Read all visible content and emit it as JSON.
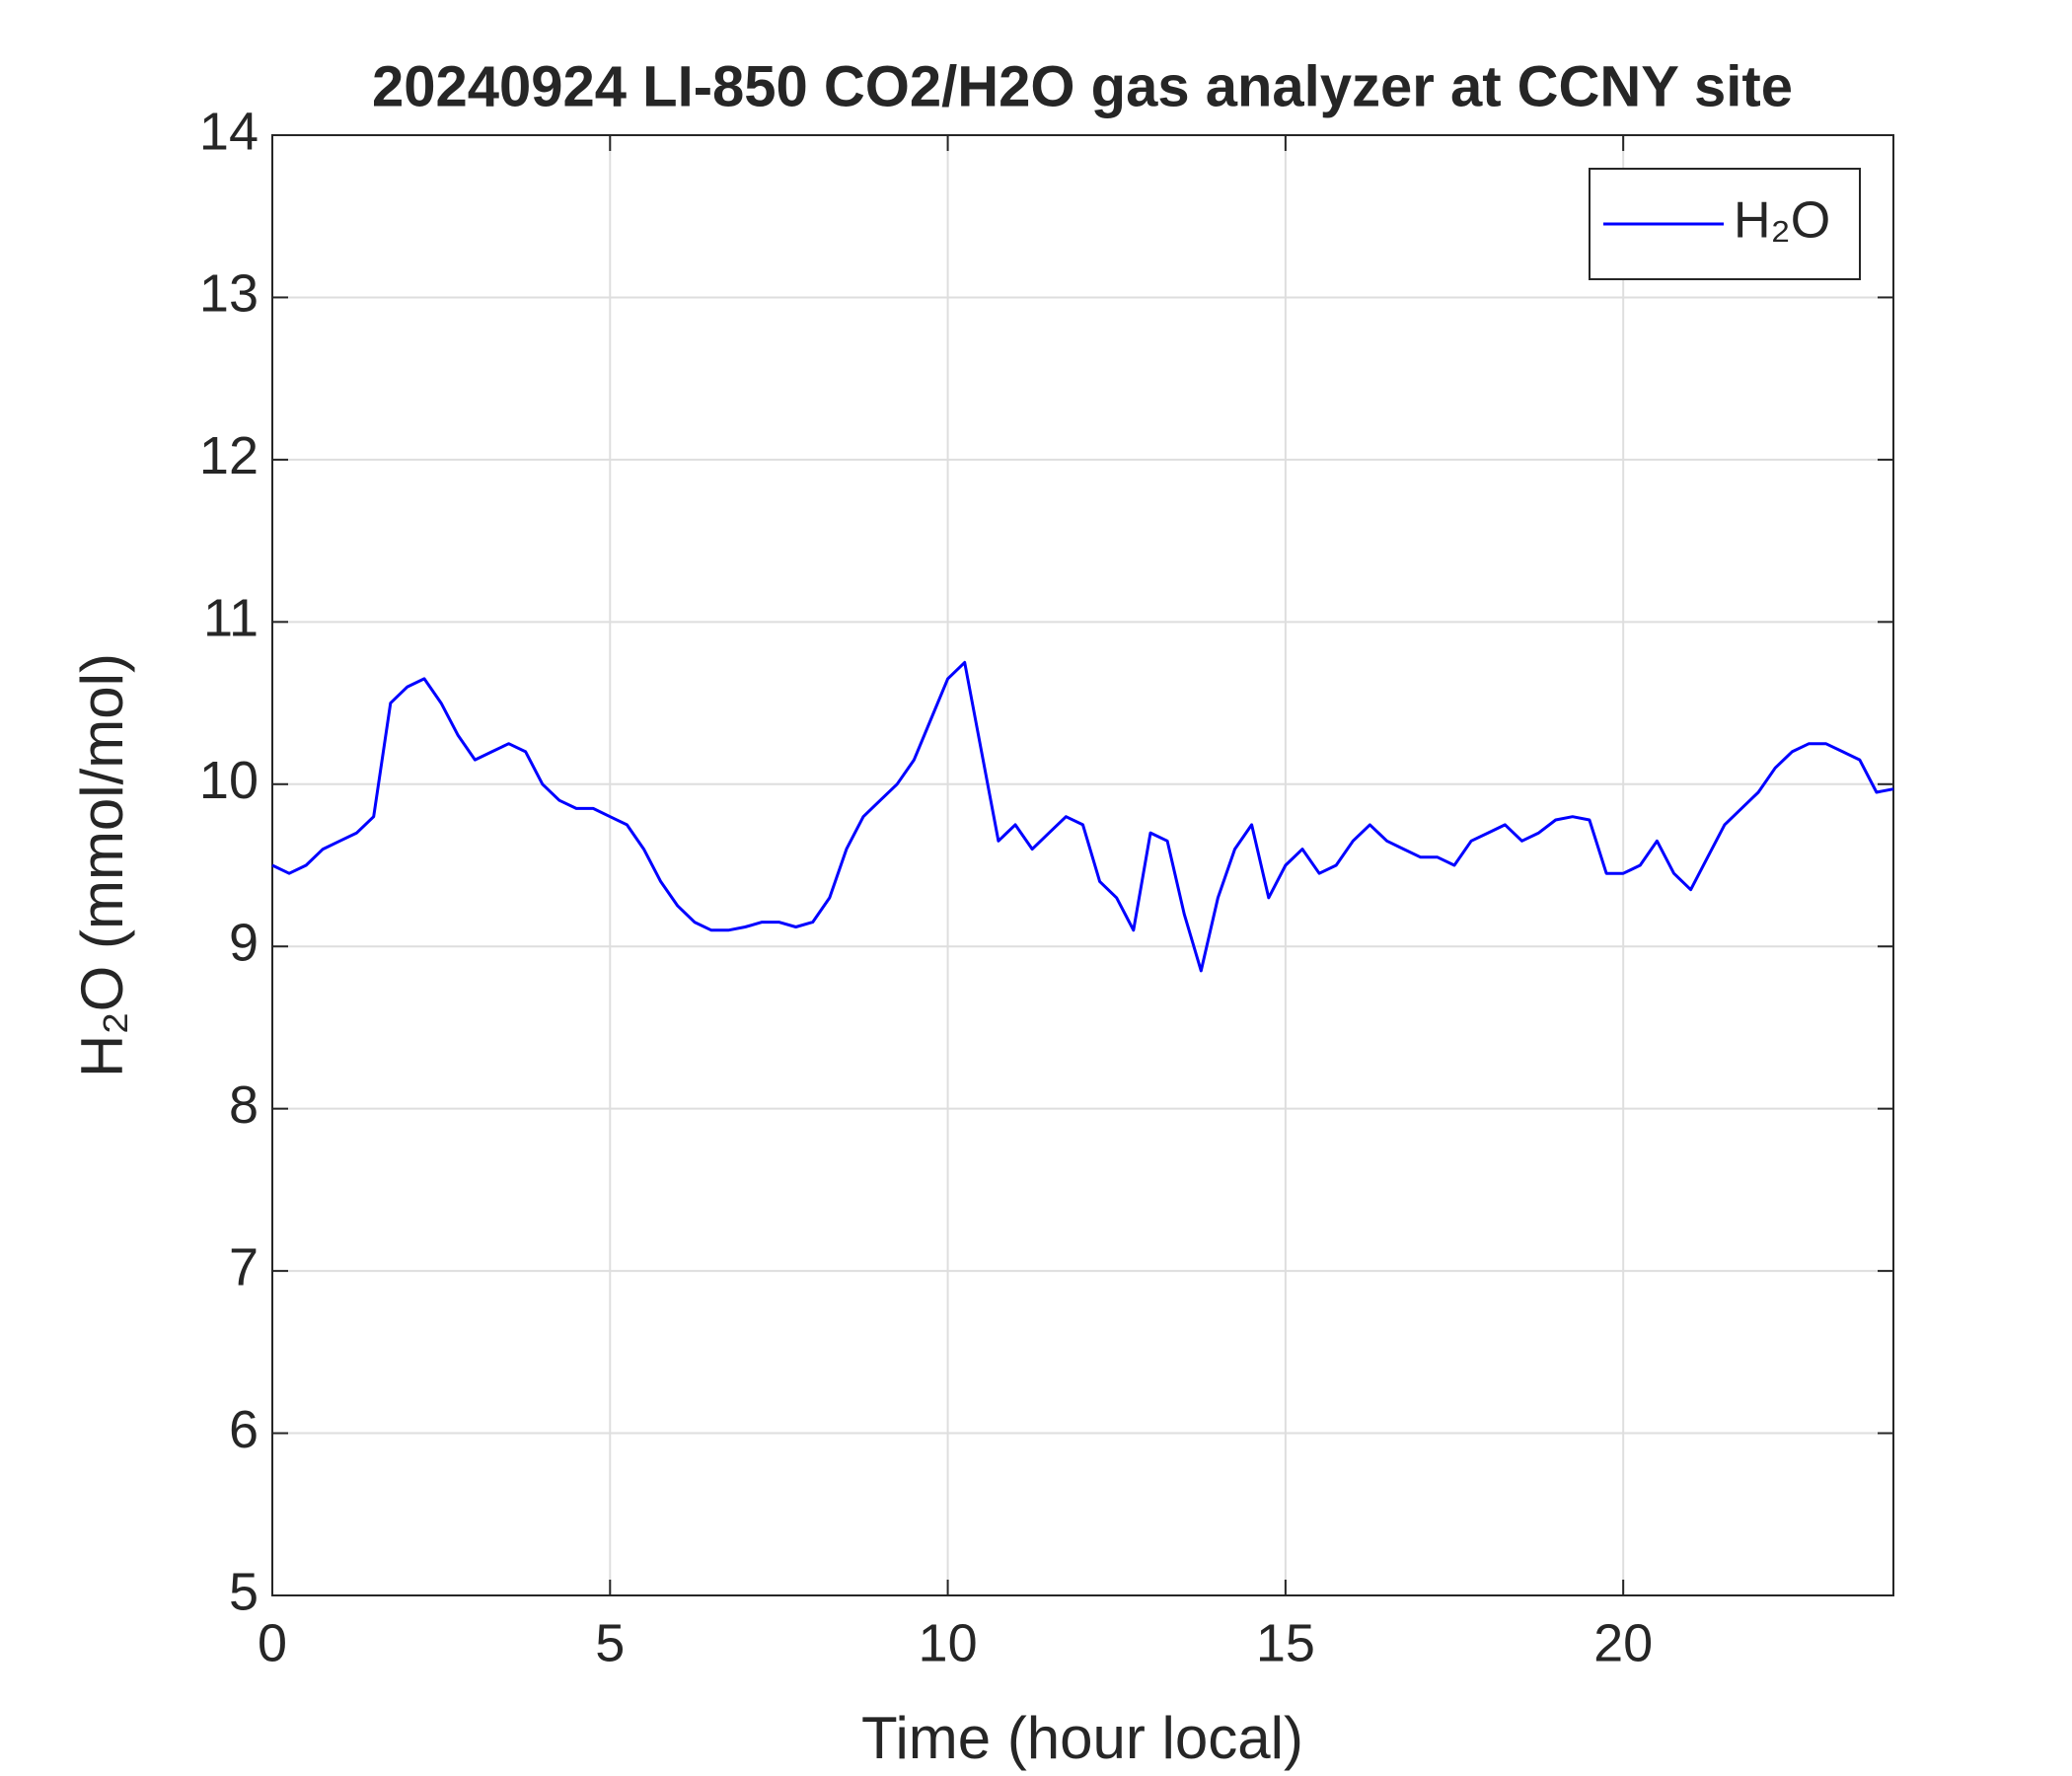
{
  "chart_data": {
    "type": "line",
    "title": "20240924 LI-850 CO2/H2O gas analyzer at CCNY site",
    "xlabel": "Time (hour local)",
    "ylabel": "H₂O (mmol/mol)",
    "x": [
      0,
      0.25,
      0.5,
      0.75,
      1,
      1.25,
      1.5,
      1.75,
      2,
      2.25,
      2.5,
      2.75,
      3,
      3.25,
      3.5,
      3.75,
      4,
      4.25,
      4.5,
      4.75,
      5,
      5.25,
      5.5,
      5.75,
      6,
      6.25,
      6.5,
      6.75,
      7,
      7.25,
      7.5,
      7.75,
      8,
      8.25,
      8.5,
      8.75,
      9,
      9.25,
      9.5,
      9.75,
      10,
      10.25,
      10.5,
      10.75,
      11,
      11.25,
      11.5,
      11.75,
      12,
      12.25,
      12.5,
      12.75,
      13,
      13.25,
      13.5,
      13.75,
      14,
      14.25,
      14.5,
      14.75,
      15,
      15.25,
      15.5,
      15.75,
      16,
      16.25,
      16.5,
      16.75,
      17,
      17.25,
      17.5,
      17.75,
      18,
      18.25,
      18.5,
      18.75,
      19,
      19.25,
      19.5,
      19.75,
      20,
      20.25,
      20.5,
      20.75,
      21,
      21.25,
      21.5,
      21.75,
      22,
      22.25,
      22.5,
      22.75,
      23,
      23.25,
      23.5,
      23.75,
      24
    ],
    "series": [
      {
        "name": "H₂O",
        "color": "#0000ff",
        "values": [
          9.5,
          9.45,
          9.5,
          9.6,
          9.65,
          9.7,
          9.8,
          10.5,
          10.6,
          10.65,
          10.5,
          10.3,
          10.15,
          10.2,
          10.25,
          10.2,
          10.0,
          9.9,
          9.85,
          9.85,
          9.8,
          9.75,
          9.6,
          9.4,
          9.25,
          9.15,
          9.1,
          9.1,
          9.12,
          9.15,
          9.15,
          9.12,
          9.15,
          9.3,
          9.6,
          9.8,
          9.9,
          10.0,
          10.15,
          10.4,
          10.65,
          10.75,
          10.2,
          9.65,
          9.75,
          9.6,
          9.7,
          9.8,
          9.75,
          9.4,
          9.3,
          9.1,
          9.7,
          9.65,
          9.2,
          8.85,
          9.3,
          9.6,
          9.75,
          9.3,
          9.5,
          9.6,
          9.45,
          9.5,
          9.65,
          9.75,
          9.65,
          9.6,
          9.55,
          9.55,
          9.5,
          9.65,
          9.7,
          9.75,
          9.65,
          9.7,
          9.78,
          9.8,
          9.78,
          9.45,
          9.45,
          9.5,
          9.65,
          9.45,
          9.35,
          9.55,
          9.75,
          9.85,
          9.95,
          10.1,
          10.2,
          10.25,
          10.25,
          10.2,
          10.15,
          9.95,
          9.97
        ]
      }
    ],
    "xlim": [
      0,
      24
    ],
    "xticks": [
      0,
      5,
      10,
      15,
      20
    ],
    "ylim": [
      5,
      14
    ],
    "yticks": [
      5,
      6,
      7,
      8,
      9,
      10,
      11,
      12,
      13,
      14
    ],
    "grid": true,
    "legend": "upper right"
  }
}
